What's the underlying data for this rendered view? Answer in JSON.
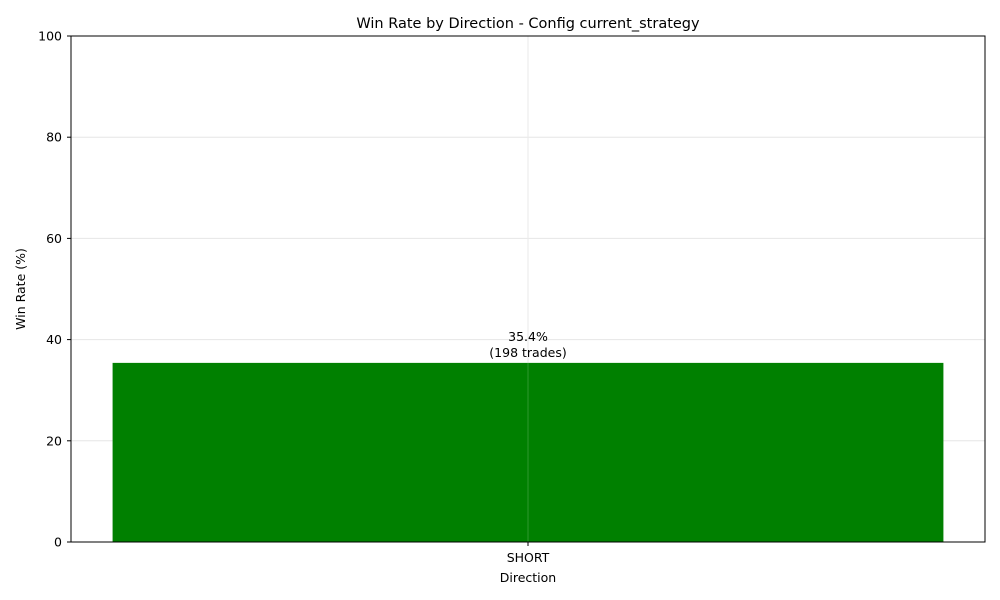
{
  "chart_data": {
    "type": "bar",
    "title": "Win Rate by Direction - Config current_strategy",
    "xlabel": "Direction",
    "ylabel": "Win Rate (%)",
    "categories": [
      "SHORT"
    ],
    "values": [
      35.4
    ],
    "data_labels": [
      [
        "35.4%",
        "(198 trades)"
      ]
    ],
    "ylim": [
      0,
      100
    ],
    "yticks": [
      0,
      20,
      40,
      60,
      80,
      100
    ],
    "ytick_labels": [
      "0",
      "20",
      "40",
      "60",
      "80",
      "100"
    ],
    "grid": true,
    "legend": "none",
    "colors": {
      "bar": "#008000",
      "grid": "#e6e6e6",
      "axis": "#000000"
    }
  }
}
